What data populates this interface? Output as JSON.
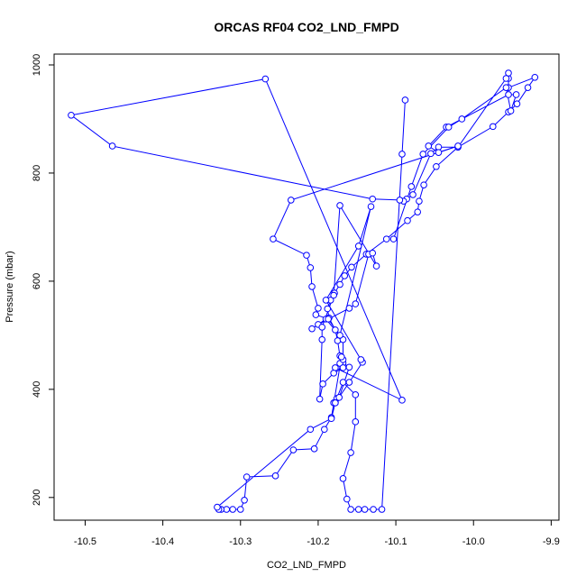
{
  "chart_data": {
    "type": "line",
    "title": "ORCAS RF04 CO2_LND_FMPD",
    "xlabel": "CO2_LND_FMPD",
    "ylabel": "Pressure (mbar)",
    "xlim": [
      -10.54,
      -9.89
    ],
    "ylim": [
      1020,
      158
    ],
    "x_ticks": [
      -10.5,
      -10.4,
      -10.3,
      -10.2,
      -10.1,
      -10.0,
      -9.9
    ],
    "x_tick_labels": [
      "-10.5",
      "-10.4",
      "-10.3",
      "-10.2",
      "-10.1",
      "-10.0",
      "-9.9"
    ],
    "y_ticks": [
      200,
      400,
      600,
      800,
      1000
    ],
    "y_tick_labels": [
      "200",
      "400",
      "600",
      "800",
      "1000"
    ],
    "grid": false,
    "legend": "none",
    "series": [
      {
        "color": "#0000ff",
        "marker": "open-circle",
        "points": [
          [
            -10.088,
            935
          ],
          [
            -10.092,
            835
          ],
          [
            -10.118,
            178
          ],
          [
            -10.129,
            178
          ],
          [
            -10.14,
            178
          ],
          [
            -10.148,
            178
          ],
          [
            -10.158,
            178
          ],
          [
            -10.163,
            197
          ],
          [
            -10.168,
            235
          ],
          [
            -10.158,
            283
          ],
          [
            -10.152,
            340
          ],
          [
            -10.152,
            390
          ],
          [
            -10.168,
            413
          ],
          [
            -10.176,
            383
          ],
          [
            -10.178,
            375
          ],
          [
            -10.18,
            375
          ],
          [
            -10.173,
            385
          ],
          [
            -10.16,
            441
          ],
          [
            -10.168,
            449
          ],
          [
            -10.172,
            462
          ],
          [
            -10.175,
            490
          ],
          [
            -10.178,
            510
          ],
          [
            -10.186,
            532
          ],
          [
            -10.188,
            549
          ],
          [
            -10.184,
            565
          ],
          [
            -10.179,
            578
          ],
          [
            -10.172,
            594
          ],
          [
            -10.166,
            610
          ],
          [
            -10.157,
            626
          ],
          [
            -10.138,
            650
          ],
          [
            -10.112,
            678
          ],
          [
            -10.085,
            712
          ],
          [
            -10.072,
            728
          ],
          [
            -10.07,
            748
          ],
          [
            -10.064,
            778
          ],
          [
            -10.048,
            812
          ],
          [
            -10.02,
            848
          ],
          [
            -9.975,
            886
          ],
          [
            -9.955,
            913
          ],
          [
            -9.944,
            928
          ],
          [
            -9.93,
            958
          ],
          [
            -9.921,
            977
          ],
          [
            -9.955,
            958
          ],
          [
            -9.955,
            975
          ],
          [
            -9.955,
            985
          ],
          [
            -9.958,
            975
          ],
          [
            -10.02,
            848
          ],
          [
            -10.045,
            848
          ],
          [
            -10.055,
            836
          ],
          [
            -10.078,
            760
          ],
          [
            -10.086,
            752
          ],
          [
            -10.09,
            748
          ],
          [
            -10.095,
            750
          ],
          [
            -10.13,
            752
          ],
          [
            -10.465,
            850
          ],
          [
            -10.518,
            907
          ],
          [
            -10.268,
            974
          ],
          [
            -10.092,
            380
          ],
          [
            -10.178,
            440
          ],
          [
            -10.172,
            448
          ],
          [
            -10.168,
            455
          ],
          [
            -10.168,
            492
          ],
          [
            -10.19,
            530
          ],
          [
            -10.208,
            512
          ],
          [
            -10.2,
            520
          ],
          [
            -10.16,
            550
          ],
          [
            -10.152,
            558
          ],
          [
            -10.135,
            650
          ],
          [
            -10.13,
            652
          ],
          [
            -10.125,
            628
          ],
          [
            -10.172,
            740
          ],
          [
            -10.18,
            574
          ],
          [
            -10.195,
            515
          ],
          [
            -10.195,
            492
          ],
          [
            -10.198,
            382
          ],
          [
            -10.194,
            410
          ],
          [
            -10.18,
            430
          ],
          [
            -10.168,
            440
          ],
          [
            -10.17,
            460
          ],
          [
            -10.183,
            348
          ],
          [
            -10.192,
            326
          ],
          [
            -10.205,
            290
          ],
          [
            -10.232,
            288
          ],
          [
            -10.255,
            240
          ],
          [
            -10.292,
            238
          ],
          [
            -10.295,
            195
          ],
          [
            -10.3,
            178
          ],
          [
            -10.31,
            178
          ],
          [
            -10.318,
            178
          ],
          [
            -10.325,
            178
          ],
          [
            -10.328,
            178
          ],
          [
            -10.33,
            182
          ],
          [
            -10.21,
            326
          ],
          [
            -10.183,
            346
          ],
          [
            -10.178,
            375
          ],
          [
            -10.16,
            413
          ],
          [
            -10.143,
            450
          ],
          [
            -10.145,
            455
          ],
          [
            -10.19,
            565
          ],
          [
            -10.148,
            665
          ],
          [
            -10.132,
            738
          ],
          [
            -10.172,
            500
          ],
          [
            -10.187,
            530
          ],
          [
            -10.203,
            538
          ],
          [
            -10.2,
            550
          ],
          [
            -10.208,
            590
          ],
          [
            -10.21,
            625
          ],
          [
            -10.215,
            648
          ],
          [
            -10.258,
            678
          ],
          [
            -10.235,
            750
          ],
          [
            -10.02,
            850
          ],
          [
            -10.045,
            838
          ],
          [
            -10.058,
            850
          ],
          [
            -10.035,
            885
          ],
          [
            -9.955,
            945
          ],
          [
            -9.945,
            945
          ],
          [
            -9.952,
            915
          ],
          [
            -9.958,
            958
          ],
          [
            -10.015,
            900
          ],
          [
            -10.032,
            885
          ],
          [
            -10.065,
            835
          ],
          [
            -10.08,
            775
          ],
          [
            -10.103,
            678
          ]
        ]
      }
    ]
  }
}
